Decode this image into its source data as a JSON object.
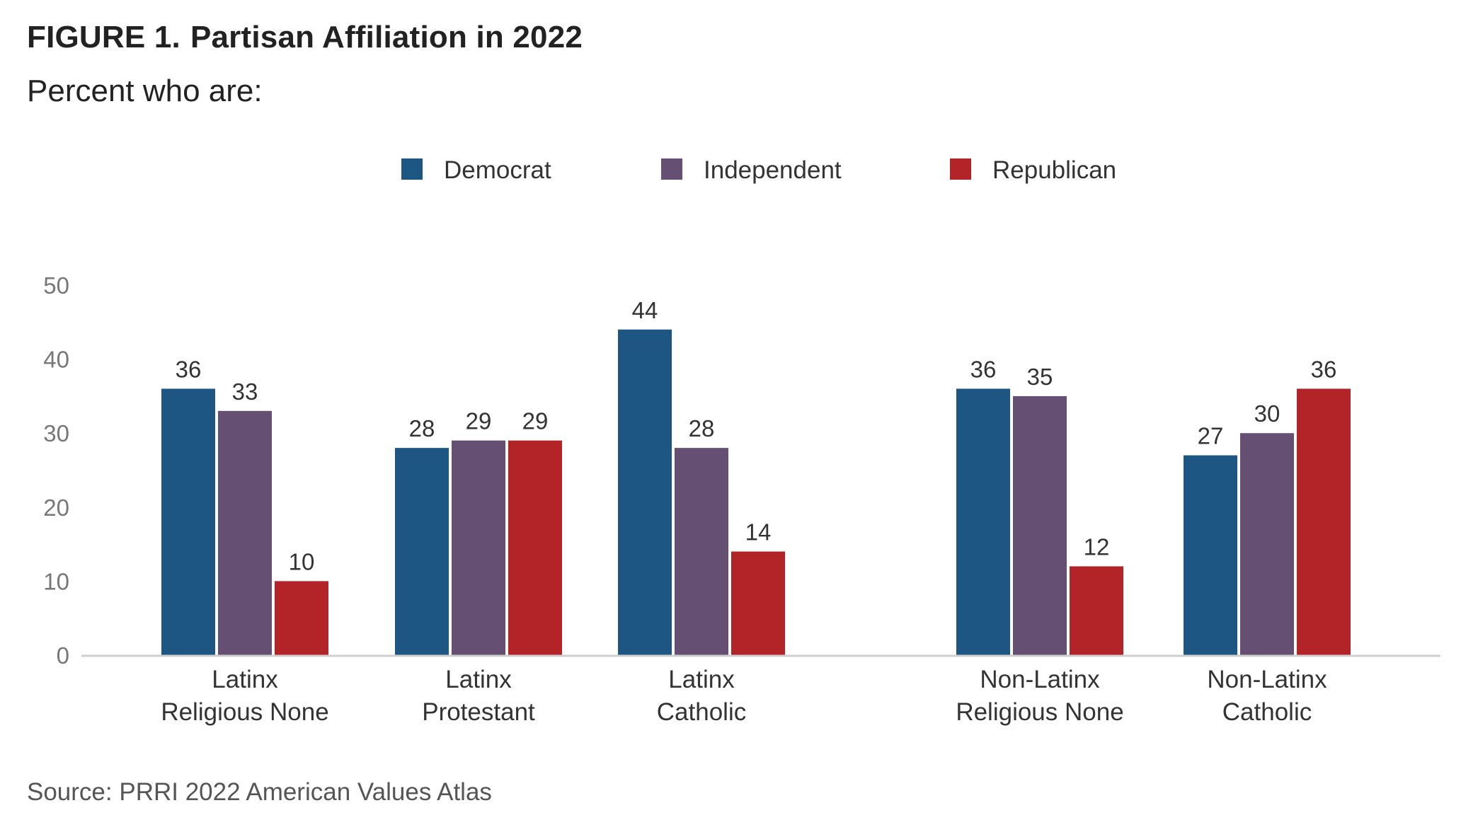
{
  "header": {
    "figure_label": "FIGURE 1.",
    "title": "Partisan Affiliation in 2022",
    "subtitle": "Percent who are:"
  },
  "source": "Source: PRRI 2022 American Values Atlas",
  "colors": {
    "Democrat": "#1d5682",
    "Independent": "#655073",
    "Republican": "#b22428",
    "axis": "#cfcfcf",
    "tick": "#777777",
    "label": "#333333"
  },
  "chart_data": {
    "type": "bar",
    "title": "Partisan Affiliation in 2022",
    "ylim": [
      0,
      50
    ],
    "yticks": [
      0,
      10,
      20,
      30,
      40,
      50
    ],
    "grid": false,
    "legend_position": "top-center",
    "categories": [
      [
        "Latinx",
        "Religious None"
      ],
      [
        "Latinx",
        "Protestant"
      ],
      [
        "Latinx",
        "Catholic"
      ],
      [
        "Non-Latinx",
        "Religious None"
      ],
      [
        "Non-Latinx",
        "Catholic"
      ]
    ],
    "series": [
      {
        "name": "Democrat",
        "color": "#1d5682",
        "values": [
          36,
          28,
          44,
          36,
          27
        ]
      },
      {
        "name": "Independent",
        "color": "#655073",
        "values": [
          33,
          29,
          28,
          35,
          30
        ]
      },
      {
        "name": "Republican",
        "color": "#b22428",
        "values": [
          10,
          29,
          14,
          12,
          36
        ]
      }
    ]
  }
}
